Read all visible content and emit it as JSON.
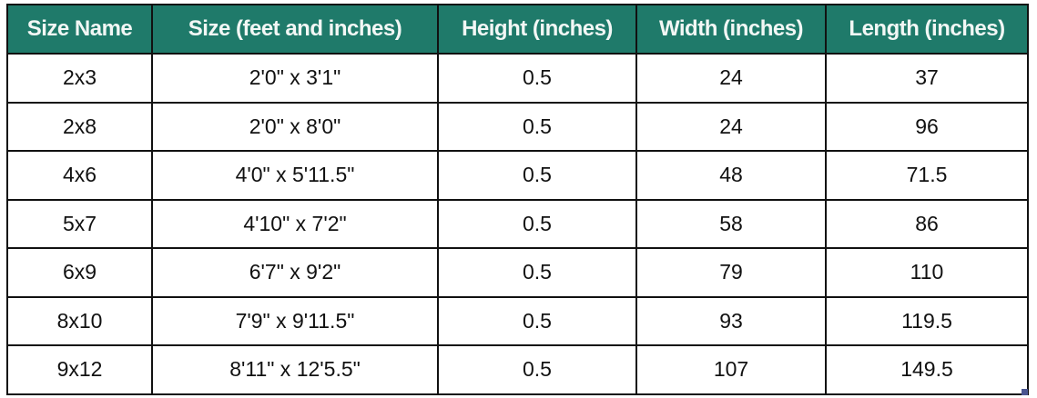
{
  "table": {
    "headers": [
      "Size Name",
      "Size (feet and inches)",
      "Height (inches)",
      "Width (inches)",
      "Length (inches)"
    ],
    "rows": [
      [
        "2x3",
        "2'0\" x 3'1\"",
        "0.5",
        "24",
        "37"
      ],
      [
        "2x8",
        "2'0\" x 8'0\"",
        "0.5",
        "24",
        "96"
      ],
      [
        "4x6",
        "4'0\" x 5'11.5\"",
        "0.5",
        "48",
        "71.5"
      ],
      [
        "5x7",
        "4'10\" x 7'2\"",
        "0.5",
        "58",
        "86"
      ],
      [
        "6x9",
        "6'7\" x 9'2\"",
        "0.5",
        "79",
        "110"
      ],
      [
        "8x10",
        "7'9\" x 9'11.5\"",
        "0.5",
        "93",
        "119.5"
      ],
      [
        "9x12",
        "8'11\" x 12'5.5\"",
        "0.5",
        "107",
        "149.5"
      ]
    ]
  },
  "colors": {
    "header_bg": "#1f7a6a",
    "header_text": "#f2f7f5"
  }
}
